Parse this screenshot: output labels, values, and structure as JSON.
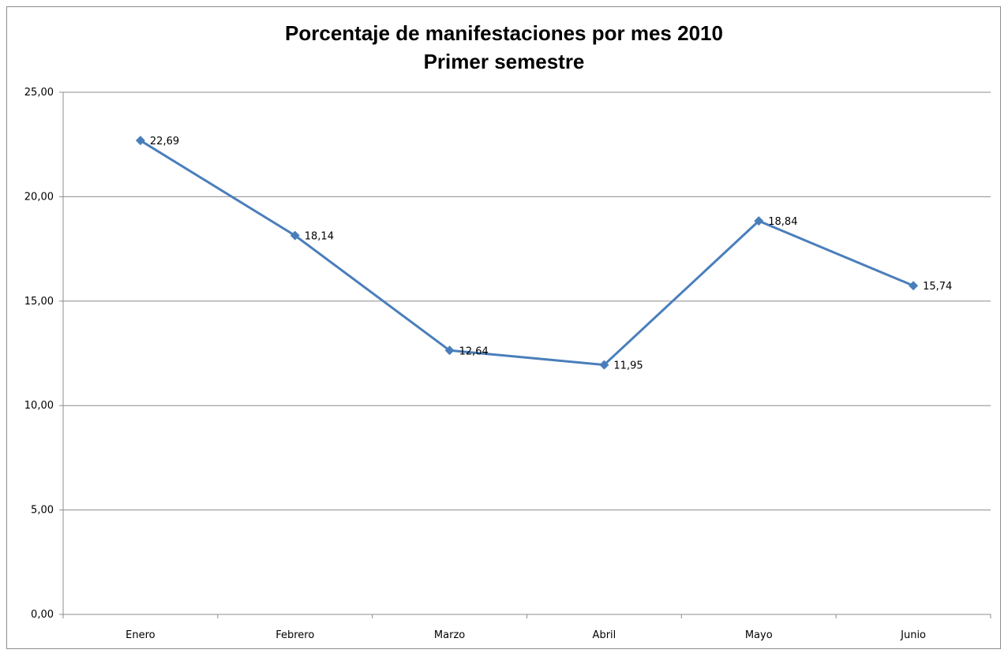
{
  "chart_data": {
    "type": "line",
    "title": "Porcentaje de manifestaciones por mes 2010",
    "subtitle": "Primer semestre",
    "categories": [
      "Enero",
      "Febrero",
      "Marzo",
      "Abril",
      "Mayo",
      "Junio"
    ],
    "series": [
      {
        "values": [
          22.69,
          18.14,
          12.64,
          11.95,
          18.84,
          15.74
        ]
      }
    ],
    "data_labels": [
      "22,69",
      "18,14",
      "12,64",
      "11,95",
      "18,84",
      "15,74"
    ],
    "y_ticks": [
      "0,00",
      "5,00",
      "10,00",
      "15,00",
      "20,00",
      "25,00"
    ],
    "ylim": [
      0,
      25
    ],
    "grid": true,
    "legend": "none",
    "colors": {
      "line": "#4a7ebb",
      "grid": "#8c8c8c"
    }
  }
}
